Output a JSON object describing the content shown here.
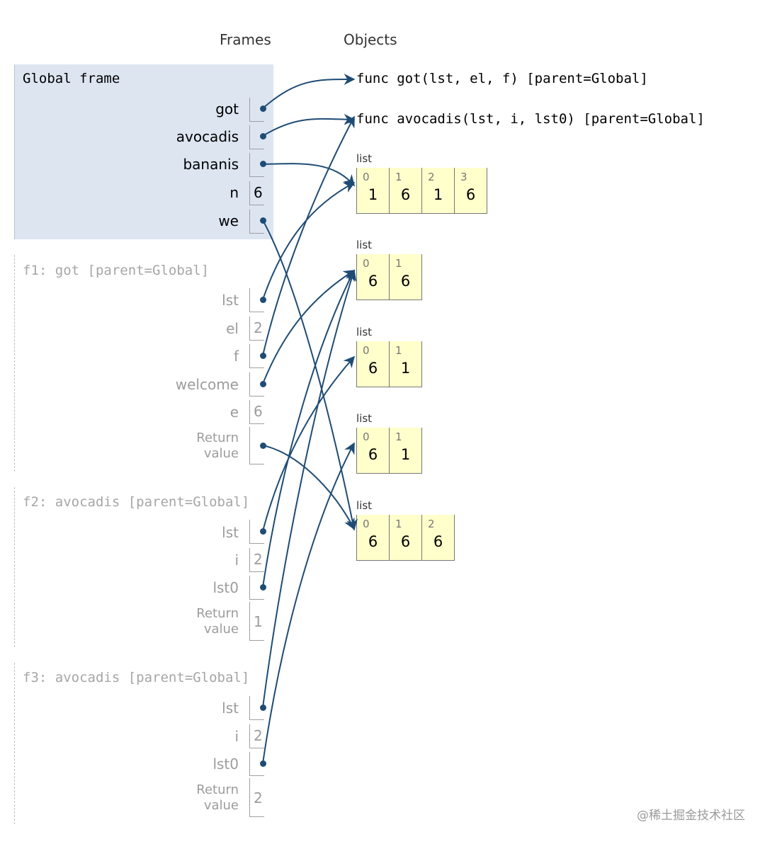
{
  "headers": {
    "frames": "Frames",
    "objects": "Objects"
  },
  "global_frame": {
    "title": "Global frame",
    "vars": [
      {
        "name": "got",
        "ref": "func_got"
      },
      {
        "name": "avocadis",
        "ref": "func_avocadis"
      },
      {
        "name": "bananis",
        "ref": "list1"
      },
      {
        "name": "n",
        "value": "6"
      },
      {
        "name": "we",
        "ref": "list5"
      }
    ]
  },
  "frames": [
    {
      "title": "f1: got [parent=Global]",
      "vars": [
        {
          "name": "lst",
          "ref": "list1"
        },
        {
          "name": "el",
          "value": "2"
        },
        {
          "name": "f",
          "ref": "func_avocadis"
        },
        {
          "name": "welcome",
          "ref": "list2"
        },
        {
          "name": "e",
          "value": "6"
        },
        {
          "name": "Return\nvalue",
          "ref": "list5"
        }
      ]
    },
    {
      "title": "f2: avocadis [parent=Global]",
      "vars": [
        {
          "name": "lst",
          "ref": "list3"
        },
        {
          "name": "i",
          "value": "2"
        },
        {
          "name": "lst0",
          "ref": "list2"
        },
        {
          "name": "Return\nvalue",
          "value": "1"
        }
      ]
    },
    {
      "title": "f3: avocadis [parent=Global]",
      "vars": [
        {
          "name": "lst",
          "ref": "list2"
        },
        {
          "name": "i",
          "value": "2"
        },
        {
          "name": "lst0",
          "ref": "list4"
        },
        {
          "name": "Return\nvalue",
          "value": "2"
        }
      ]
    }
  ],
  "objects": {
    "func_got": {
      "label": "func got(lst, el, f) [parent=Global]"
    },
    "func_avocadis": {
      "label": "func avocadis(lst, i, lst0) [parent=Global]"
    },
    "list1": {
      "label": "list",
      "items": [
        "1",
        "6",
        "1",
        "6"
      ]
    },
    "list2": {
      "label": "list",
      "items": [
        "6",
        "6"
      ]
    },
    "list3": {
      "label": "list",
      "items": [
        "6",
        "1"
      ]
    },
    "list4": {
      "label": "list",
      "items": [
        "6",
        "1"
      ]
    },
    "list5": {
      "label": "list",
      "items": [
        "6",
        "6",
        "6"
      ]
    }
  },
  "watermark": "@稀土掘金技术社区",
  "colors": {
    "arrow": "#1f4c75",
    "global_frame_bg": "#dde5f1",
    "list_bg": "#ffffcc"
  }
}
